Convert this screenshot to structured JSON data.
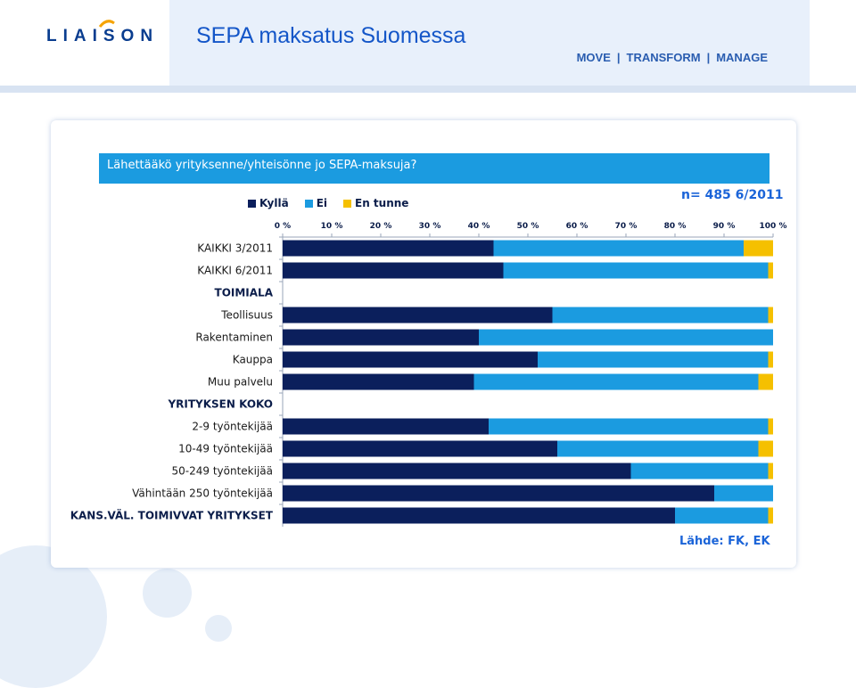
{
  "header": {
    "logo": "LIAISON",
    "title": "SEPA maksatus Suomessa",
    "tagline": [
      "MOVE",
      "TRANSFORM",
      "MANAGE"
    ]
  },
  "colors": {
    "kylla": "#0b1f5c",
    "ei": "#1b9be0",
    "en_tunne": "#f5c000",
    "title": "#1456c8"
  },
  "chart_data": {
    "type": "bar",
    "orientation": "horizontal",
    "stacked": true,
    "title": "Lähettääkö yrityksenne/yhteisönne jo SEPA-maksuja?",
    "sample_note": "n= 485  6/2011",
    "source": "Lähde: FK, EK",
    "categories": [
      "KAIKKI 3/2011",
      "KAIKKI 6/2011",
      "TOIMIALA",
      "Teollisuus",
      "Rakentaminen",
      "Kauppa",
      "Muu palvelu",
      "YRITYKSEN KOKO",
      "2-9 työntekijää",
      "10-49 työntekijää",
      "50-249 työntekijää",
      "Vähintään 250 työntekijää",
      "KANS.VÄL. TOIMIVVAT YRITYKSET"
    ],
    "heading_categories": [
      "TOIMIALA",
      "YRITYKSEN KOKO",
      "KANS.VÄL. TOIMIVVAT YRITYKSET"
    ],
    "series": [
      {
        "name": "Kyllä",
        "values": [
          43,
          45,
          null,
          55,
          40,
          52,
          39,
          null,
          42,
          56,
          71,
          88,
          80
        ]
      },
      {
        "name": "Ei",
        "values": [
          51,
          54,
          null,
          44,
          60,
          47,
          58,
          null,
          57,
          41,
          28,
          12,
          19
        ]
      },
      {
        "name": "En tunne",
        "values": [
          6,
          1,
          null,
          1,
          0,
          1,
          3,
          null,
          1,
          3,
          1,
          0,
          1
        ]
      }
    ],
    "x_ticks": [
      "0 %",
      "10 %",
      "20 %",
      "30 %",
      "40 %",
      "50 %",
      "60 %",
      "70 %",
      "80 %",
      "90 %",
      "100 %"
    ],
    "xlim": [
      0,
      100
    ],
    "legend_position": "top"
  }
}
